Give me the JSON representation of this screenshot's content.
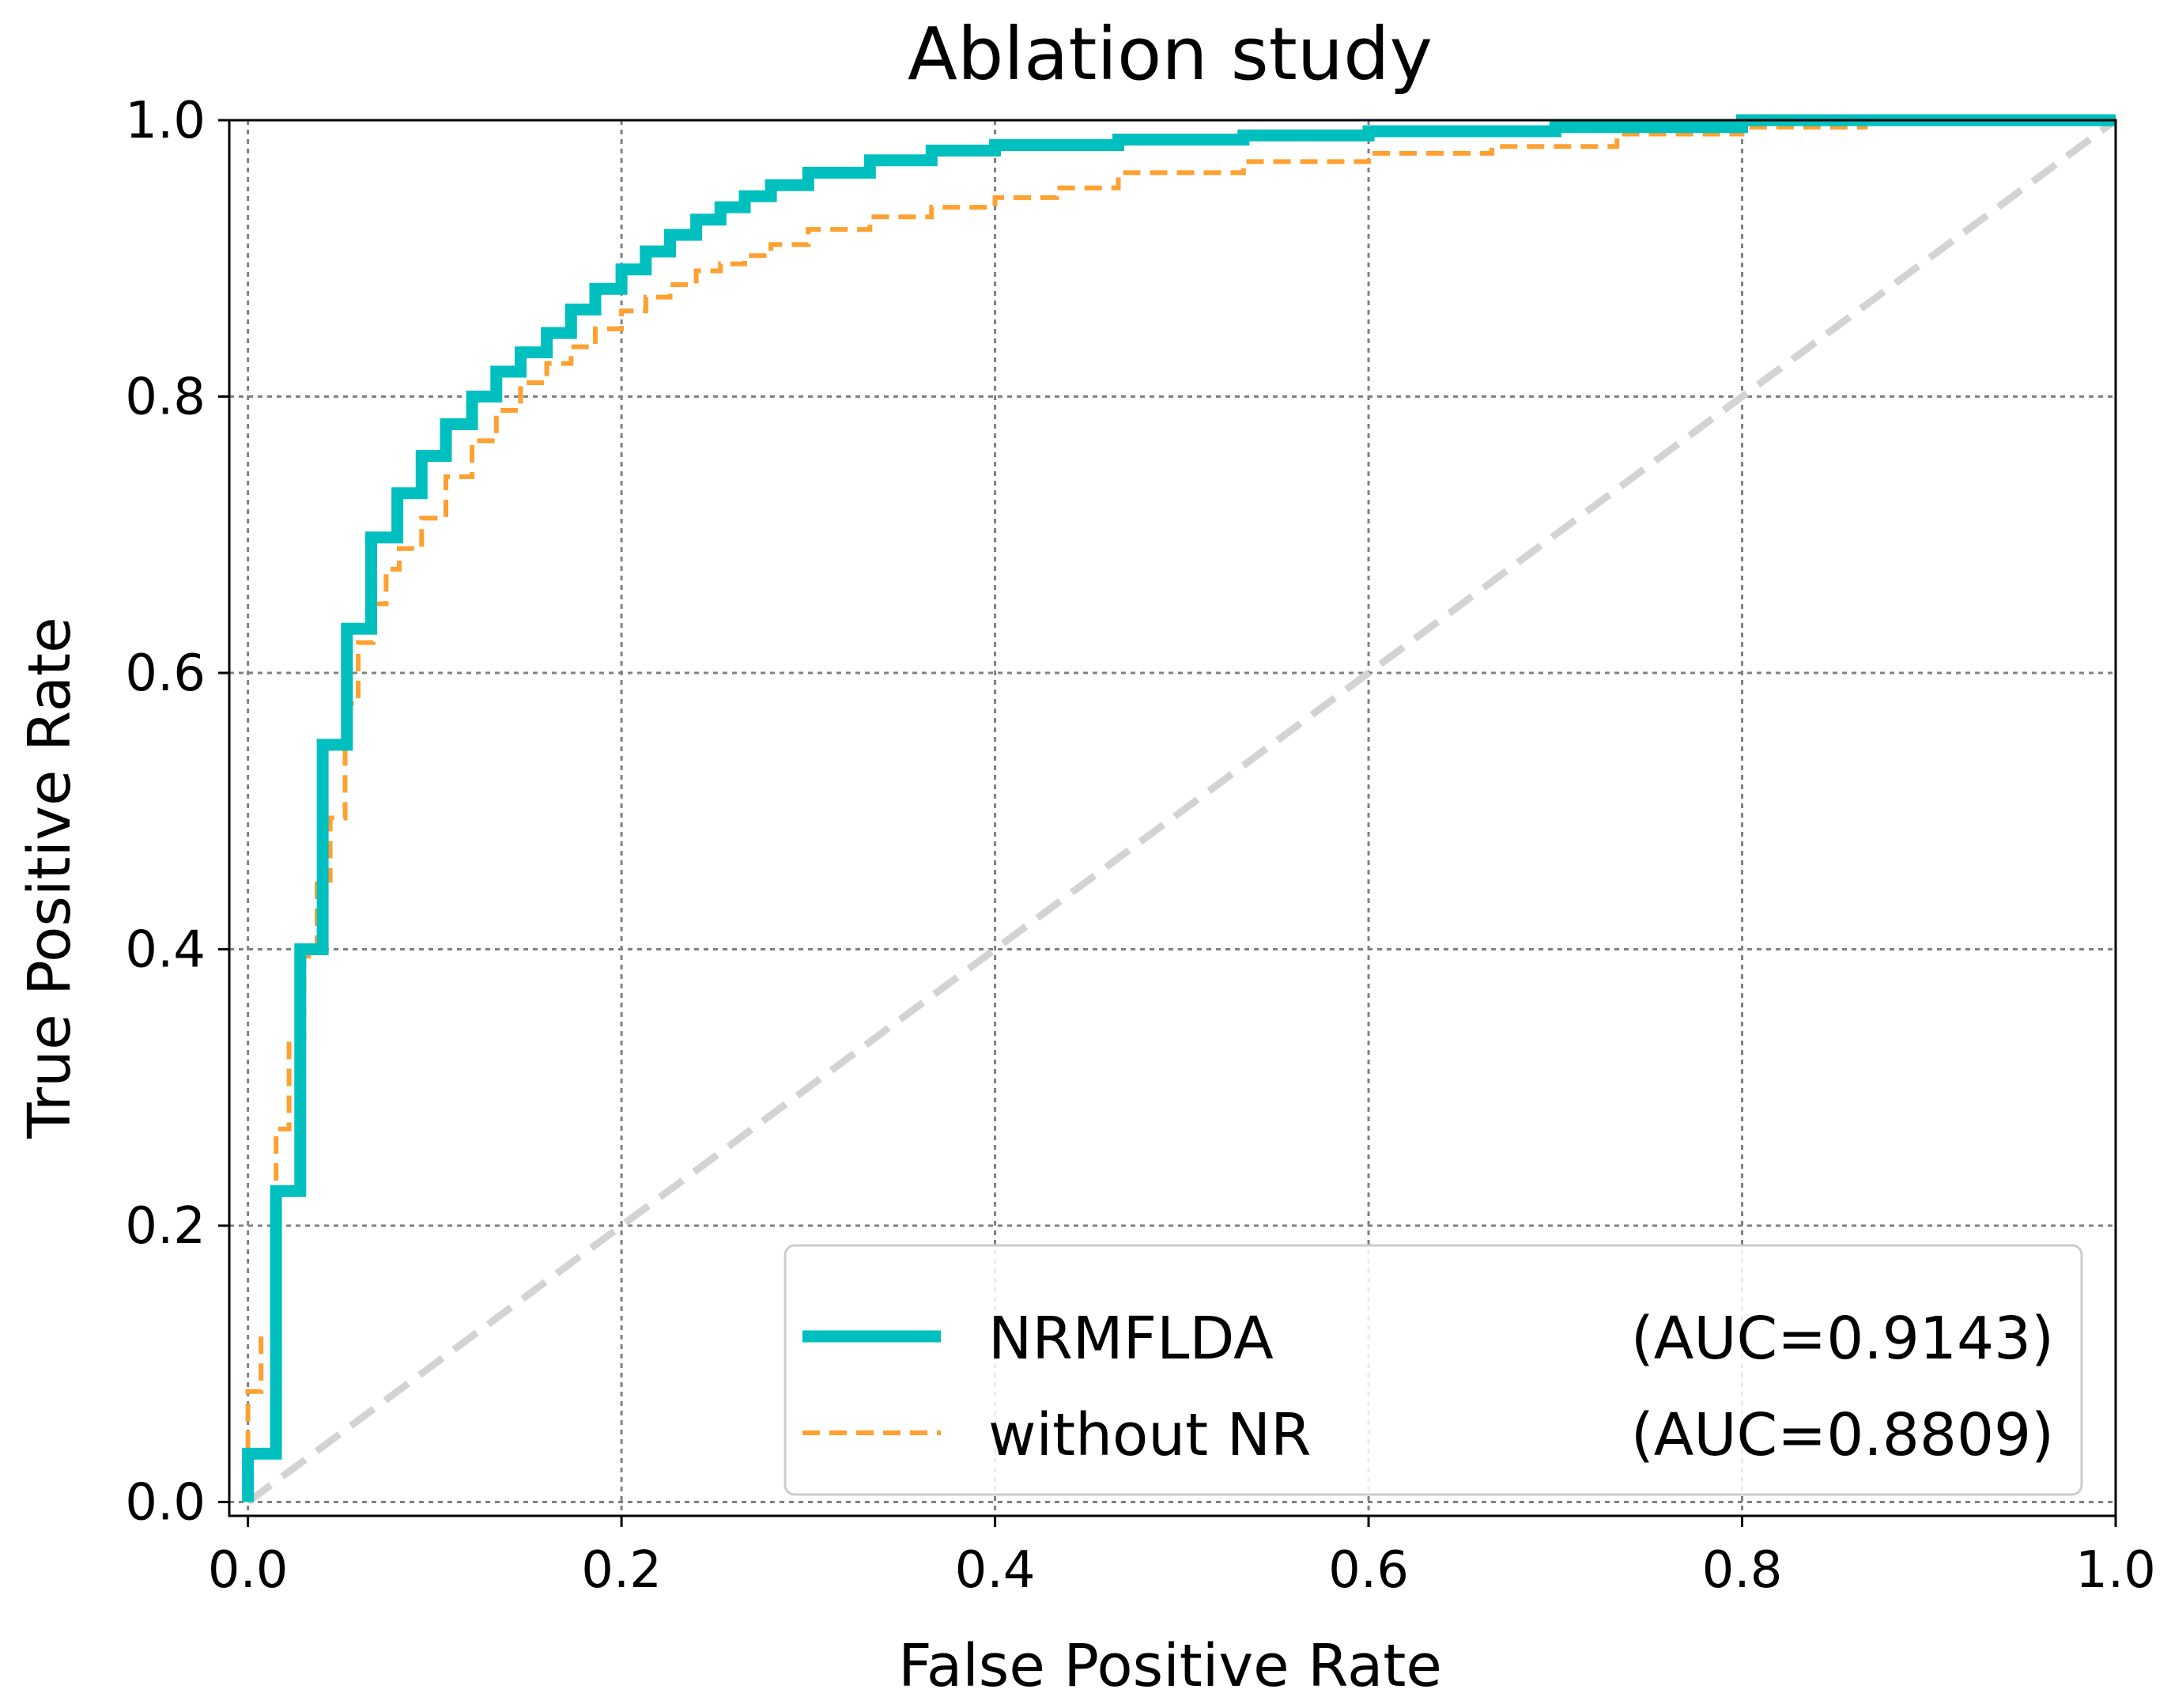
{
  "chart_data": {
    "type": "line",
    "title": "Ablation study",
    "xlabel": "False Positive Rate",
    "ylabel": "True Positive Rate",
    "xlim": [
      -0.01,
      1.0
    ],
    "ylim": [
      -0.01,
      1.0
    ],
    "xticks": [
      0.0,
      0.2,
      0.4,
      0.6,
      0.8,
      1.0
    ],
    "yticks": [
      0.0,
      0.2,
      0.4,
      0.6,
      0.8,
      1.0
    ],
    "xtick_labels": [
      "0.0",
      "0.2",
      "0.4",
      "0.6",
      "0.8",
      "1.0"
    ],
    "ytick_labels": [
      "0.0",
      "0.2",
      "0.4",
      "0.6",
      "0.8",
      "1.0"
    ],
    "grid": true,
    "legend_position": "lower-right",
    "series": [
      {
        "name": "NRMFLDA",
        "auc_label": "(AUC=0.9143)",
        "color": "#00bfbf",
        "style": "solid",
        "x": [
          0.0,
          0.0,
          0.015,
          0.015,
          0.028,
          0.028,
          0.04,
          0.04,
          0.053,
          0.053,
          0.066,
          0.066,
          0.08,
          0.08,
          0.093,
          0.093,
          0.106,
          0.106,
          0.12,
          0.12,
          0.133,
          0.133,
          0.146,
          0.146,
          0.16,
          0.16,
          0.173,
          0.173,
          0.186,
          0.186,
          0.2,
          0.2,
          0.213,
          0.213,
          0.226,
          0.226,
          0.24,
          0.24,
          0.253,
          0.253,
          0.266,
          0.266,
          0.28,
          0.28,
          0.3,
          0.3,
          0.333,
          0.333,
          0.366,
          0.366,
          0.4,
          0.4,
          0.466,
          0.466,
          0.533,
          0.533,
          0.6,
          0.6,
          0.7,
          0.7,
          0.8,
          0.8,
          1.0
        ],
        "y": [
          0.0,
          0.035,
          0.035,
          0.225,
          0.225,
          0.4,
          0.4,
          0.548,
          0.548,
          0.632,
          0.632,
          0.698,
          0.698,
          0.73,
          0.73,
          0.757,
          0.757,
          0.78,
          0.78,
          0.8,
          0.8,
          0.818,
          0.818,
          0.832,
          0.832,
          0.846,
          0.846,
          0.863,
          0.863,
          0.878,
          0.878,
          0.892,
          0.892,
          0.905,
          0.905,
          0.917,
          0.917,
          0.928,
          0.928,
          0.937,
          0.937,
          0.945,
          0.945,
          0.953,
          0.953,
          0.962,
          0.962,
          0.971,
          0.971,
          0.978,
          0.978,
          0.982,
          0.982,
          0.986,
          0.986,
          0.989,
          0.989,
          0.992,
          0.992,
          0.995,
          0.995,
          1.0,
          1.0
        ]
      },
      {
        "name": "without NR",
        "auc_label": "(AUC=0.8809)",
        "color": "#ffa030",
        "style": "dashed",
        "x": [
          0.0,
          0.0,
          0.007,
          0.007,
          0.015,
          0.015,
          0.022,
          0.022,
          0.03,
          0.03,
          0.037,
          0.037,
          0.044,
          0.044,
          0.052,
          0.052,
          0.059,
          0.059,
          0.067,
          0.067,
          0.074,
          0.074,
          0.081,
          0.081,
          0.093,
          0.093,
          0.106,
          0.106,
          0.12,
          0.12,
          0.133,
          0.133,
          0.146,
          0.146,
          0.16,
          0.16,
          0.173,
          0.173,
          0.186,
          0.186,
          0.2,
          0.2,
          0.213,
          0.213,
          0.226,
          0.226,
          0.24,
          0.24,
          0.253,
          0.253,
          0.266,
          0.266,
          0.28,
          0.28,
          0.3,
          0.3,
          0.333,
          0.333,
          0.366,
          0.366,
          0.4,
          0.4,
          0.433,
          0.433,
          0.466,
          0.466,
          0.533,
          0.533,
          0.6,
          0.6,
          0.666,
          0.666,
          0.733,
          0.733,
          0.8,
          0.8,
          0.866,
          0.866,
          1.0
        ],
        "y": [
          0.0,
          0.08,
          0.08,
          0.12,
          0.12,
          0.27,
          0.27,
          0.335,
          0.335,
          0.395,
          0.395,
          0.45,
          0.45,
          0.495,
          0.495,
          0.578,
          0.578,
          0.622,
          0.622,
          0.65,
          0.65,
          0.675,
          0.675,
          0.69,
          0.69,
          0.712,
          0.712,
          0.742,
          0.742,
          0.768,
          0.768,
          0.79,
          0.79,
          0.81,
          0.81,
          0.824,
          0.824,
          0.836,
          0.836,
          0.849,
          0.849,
          0.862,
          0.862,
          0.872,
          0.872,
          0.881,
          0.881,
          0.891,
          0.891,
          0.896,
          0.896,
          0.902,
          0.902,
          0.91,
          0.91,
          0.921,
          0.921,
          0.93,
          0.93,
          0.937,
          0.937,
          0.944,
          0.944,
          0.951,
          0.951,
          0.962,
          0.962,
          0.97,
          0.97,
          0.976,
          0.976,
          0.981,
          0.981,
          0.99,
          0.99,
          0.995,
          0.995,
          1.0,
          1.0
        ]
      },
      {
        "name": "",
        "color": "#d3d3d3",
        "style": "dashed",
        "x": [
          0.0,
          1.0
        ],
        "y": [
          0.0,
          1.0
        ]
      }
    ]
  }
}
